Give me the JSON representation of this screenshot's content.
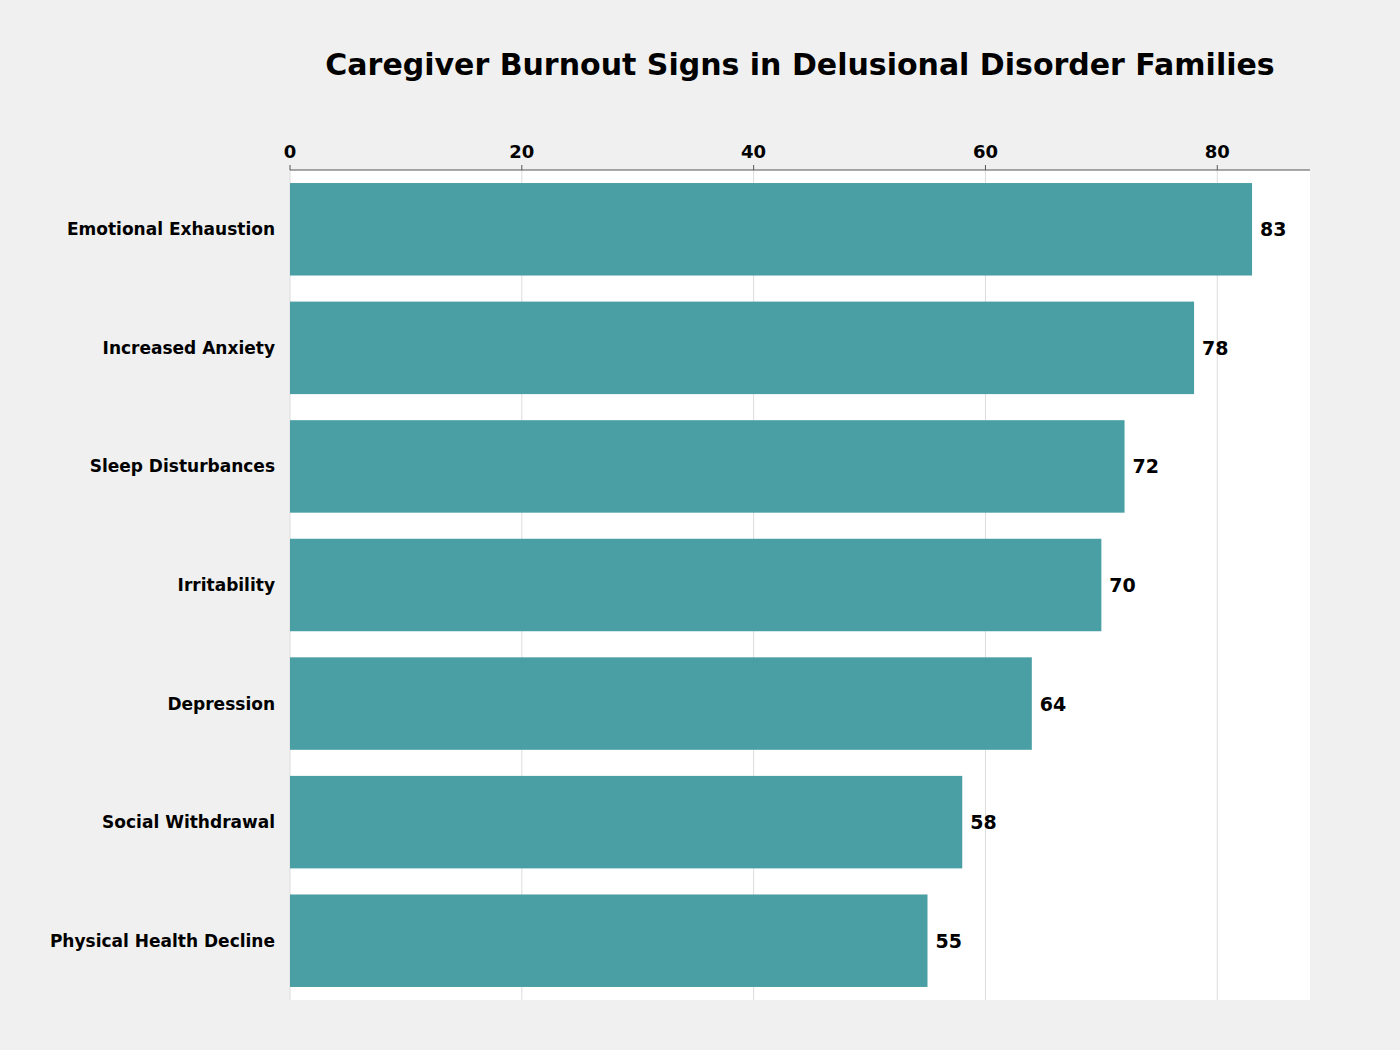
{
  "chart_data": {
    "type": "bar",
    "orientation": "horizontal",
    "title": "Caregiver Burnout Signs in Delusional Disorder Families",
    "categories": [
      "Emotional Exhaustion",
      "Increased Anxiety",
      "Sleep Disturbances",
      "Irritability",
      "Depression",
      "Social Withdrawal",
      "Physical Health Decline"
    ],
    "values": [
      83,
      78,
      72,
      70,
      64,
      58,
      55
    ],
    "color": "#4a9fa5",
    "xlim": [
      0,
      88
    ],
    "xticks": [
      0,
      20,
      40,
      60,
      80
    ],
    "grid": true,
    "data_labels": true
  }
}
